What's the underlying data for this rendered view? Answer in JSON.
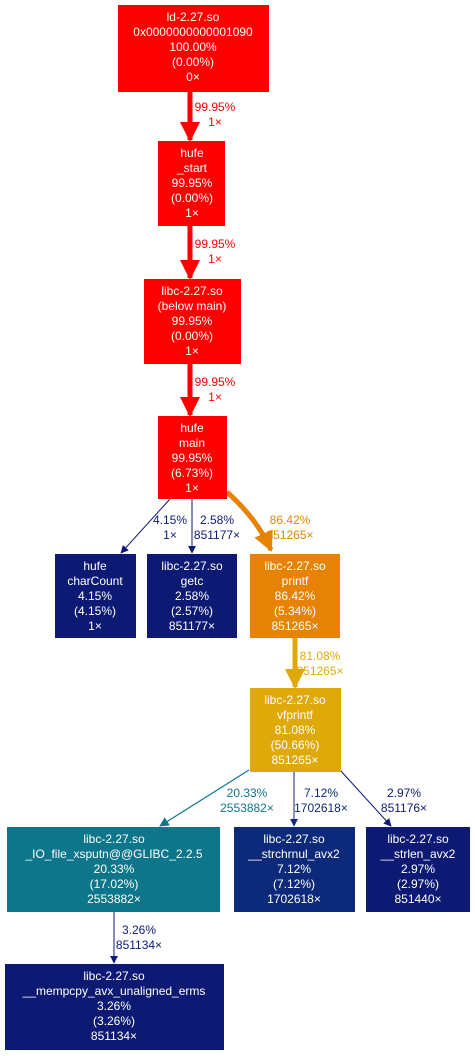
{
  "nodes": {
    "ld": {
      "color": "#ff0000",
      "lines": [
        "ld-2.27.so",
        "0x0000000000001090",
        "100.00%",
        "(0.00%)",
        "0×"
      ]
    },
    "start": {
      "color": "#ff0000",
      "lines": [
        "hufe",
        "_start",
        "99.95%",
        "(0.00%)",
        "1×"
      ]
    },
    "below_main": {
      "color": "#ff0000",
      "lines": [
        "libc-2.27.so",
        "(below main)",
        "99.95%",
        "(0.00%)",
        "1×"
      ]
    },
    "main": {
      "color": "#ff0000",
      "lines": [
        "hufe",
        "main",
        "99.95%",
        "(6.73%)",
        "1×"
      ]
    },
    "charcount": {
      "color": "#0d1a73",
      "lines": [
        "hufe",
        "charCount",
        "4.15%",
        "(4.15%)",
        "1×"
      ]
    },
    "getc": {
      "color": "#0d1a73",
      "lines": [
        "libc-2.27.so",
        "getc",
        "2.58%",
        "(2.57%)",
        "851177×"
      ]
    },
    "printf": {
      "color": "#e68305",
      "lines": [
        "libc-2.27.so",
        "printf",
        "86.42%",
        "(5.34%)",
        "851265×"
      ]
    },
    "vfprintf": {
      "color": "#e0a90a",
      "lines": [
        "libc-2.27.so",
        "vfprintf",
        "81.08%",
        "(50.66%)",
        "851265×"
      ]
    },
    "io_xsputn": {
      "color": "#0d768a",
      "lines": [
        "libc-2.27.so",
        "_IO_file_xsputn@@GLIBC_2.2.5",
        "20.33%",
        "(17.02%)",
        "2553882×"
      ]
    },
    "strchrnul": {
      "color": "#0d2a7a",
      "lines": [
        "libc-2.27.so",
        "__strchrnul_avx2",
        "7.12%",
        "(7.12%)",
        "1702618×"
      ]
    },
    "strlen": {
      "color": "#0d1a73",
      "lines": [
        "libc-2.27.so",
        "__strlen_avx2",
        "2.97%",
        "(2.97%)",
        "851440×"
      ]
    },
    "mempcpy": {
      "color": "#0d1a73",
      "lines": [
        "libc-2.27.so",
        "__mempcpy_avx_unaligned_erms",
        "3.26%",
        "(3.26%)",
        "851134×"
      ]
    }
  },
  "edges": {
    "ld_start": {
      "color": "#ff0000",
      "lines": [
        "99.95%",
        "1×"
      ]
    },
    "start_below": {
      "color": "#ff0000",
      "lines": [
        "99.95%",
        "1×"
      ]
    },
    "below_main": {
      "color": "#ff0000",
      "lines": [
        "99.95%",
        "1×"
      ]
    },
    "main_charcount": {
      "color": "#0d1a73",
      "lines": [
        "4.15%",
        "1×"
      ]
    },
    "main_getc": {
      "color": "#0d1a73",
      "lines": [
        "2.58%",
        "851177×"
      ]
    },
    "main_printf": {
      "color": "#e68305",
      "lines": [
        "86.42%",
        "851265×"
      ]
    },
    "printf_vfprintf": {
      "color": "#e0a90a",
      "lines": [
        "81.08%",
        "851265×"
      ]
    },
    "vfprintf_io": {
      "color": "#0d768a",
      "lines": [
        "20.33%",
        "2553882×"
      ]
    },
    "vfprintf_strchrnul": {
      "color": "#0d2a7a",
      "lines": [
        "7.12%",
        "1702618×"
      ]
    },
    "vfprintf_strlen": {
      "color": "#0d1a73",
      "lines": [
        "2.97%",
        "851176×"
      ]
    },
    "io_mempcpy": {
      "color": "#0d1a73",
      "lines": [
        "3.26%",
        "851134×"
      ]
    }
  }
}
